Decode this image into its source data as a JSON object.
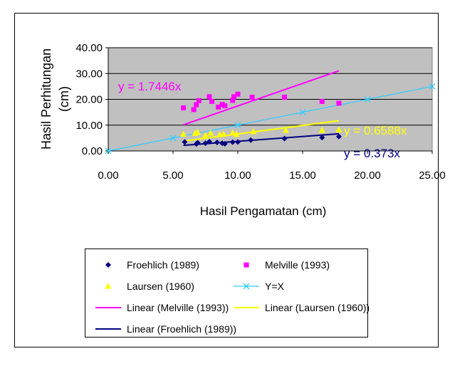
{
  "chart_data": {
    "type": "scatter",
    "title": "",
    "xlabel": "Hasil Pengamatan (cm)",
    "ylabel_lines": [
      "Hasil Perhitungan",
      "(cm)"
    ],
    "xlim": [
      0,
      25
    ],
    "ylim": [
      0,
      40
    ],
    "xticks": [
      "0.00",
      "5.00",
      "10.00",
      "15.00",
      "20.00",
      "25.00"
    ],
    "yticks": [
      "0.00",
      "10.00",
      "20.00",
      "30.00",
      "40.00"
    ],
    "grid": "horizontal",
    "plot_background": "#c0c0c0",
    "series": [
      {
        "name": "Froehlich (1989)",
        "marker": "diamond",
        "color": "#000080",
        "x": [
          5.9,
          6.8,
          6.9,
          7.5,
          7.8,
          8.4,
          8.8,
          9.0,
          9.6,
          10.0,
          11.0,
          13.6,
          16.5,
          17.8
        ],
        "y": [
          3.5,
          2.7,
          3.2,
          3.0,
          3.6,
          3.3,
          3.0,
          2.8,
          3.4,
          3.5,
          4.2,
          4.8,
          5.2,
          5.6
        ]
      },
      {
        "name": "Melville (1993)",
        "marker": "square",
        "color": "#ff00ff",
        "x": [
          5.8,
          6.6,
          6.8,
          7.0,
          7.8,
          8.0,
          8.5,
          8.8,
          9.0,
          9.6,
          9.7,
          10.0,
          11.1,
          13.6,
          16.5,
          17.8
        ],
        "y": [
          16.7,
          16.0,
          17.9,
          19.5,
          21.0,
          19.2,
          17.0,
          18.0,
          17.5,
          19.6,
          21.0,
          22.0,
          20.8,
          20.8,
          19.2,
          18.5
        ]
      },
      {
        "name": "Laursen (1960)",
        "marker": "triangle",
        "color": "#ffff00",
        "x": [
          5.8,
          6.7,
          6.9,
          7.5,
          7.9,
          8.6,
          8.9,
          9.6,
          9.9,
          11.2,
          13.7,
          16.5,
          17.8
        ],
        "y": [
          6.5,
          6.8,
          7.2,
          6.0,
          6.9,
          6.3,
          6.5,
          7.0,
          6.4,
          7.5,
          8.0,
          8.0,
          8.2
        ]
      },
      {
        "name": "Y=X",
        "marker": "x",
        "color": "#33ccff",
        "line": true,
        "x": [
          0,
          5,
          10,
          15,
          20,
          25
        ],
        "y": [
          0,
          5,
          10,
          15,
          20,
          25
        ]
      }
    ],
    "trendlines": [
      {
        "name": "Linear (Melville (1993))",
        "color": "#ff00ff",
        "slope": 1.7446,
        "x_range": [
          5.8,
          17.8
        ],
        "label": "y = 1.7446x"
      },
      {
        "name": "Linear (Laursen (1960))",
        "color": "#ffff00",
        "slope": 0.6588,
        "x_range": [
          5.8,
          17.8
        ],
        "label": "y = 0.6588x"
      },
      {
        "name": "Linear (Froehlich (1989))",
        "color": "#000080",
        "slope": 0.373,
        "x_range": [
          5.8,
          17.8
        ],
        "label": "y = 0.373x"
      }
    ],
    "legend_placement": "bottom",
    "legend_entries": [
      {
        "label": "Froehlich (1989)",
        "kind": "marker",
        "marker": "diamond",
        "color": "#000080"
      },
      {
        "label": "Melville (1993)",
        "kind": "marker",
        "marker": "square",
        "color": "#ff00ff"
      },
      {
        "label": "Laursen (1960)",
        "kind": "marker",
        "marker": "triangle",
        "color": "#ffff00"
      },
      {
        "label": "Y=X",
        "kind": "line-marker",
        "marker": "x",
        "color": "#33ccff"
      },
      {
        "label": "Linear (Melville (1993))",
        "kind": "line",
        "color": "#ff00ff"
      },
      {
        "label": "Linear (Laursen (1960))",
        "kind": "line",
        "color": "#ffff00"
      },
      {
        "label": "Linear (Froehlich (1989))",
        "kind": "line",
        "color": "#000080"
      }
    ]
  }
}
